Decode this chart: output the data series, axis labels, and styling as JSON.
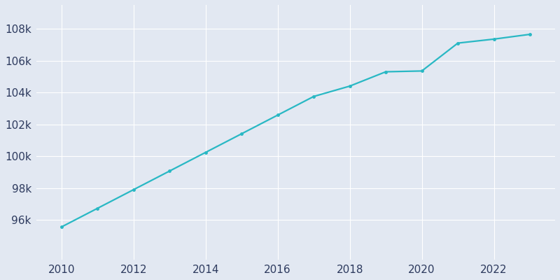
{
  "years": [
    2010,
    2011,
    2012,
    2013,
    2014,
    2015,
    2016,
    2017,
    2018,
    2019,
    2020,
    2021,
    2022,
    2023
  ],
  "population": [
    95560,
    96730,
    97900,
    99070,
    100240,
    101410,
    102580,
    103750,
    104400,
    105300,
    105350,
    107100,
    107350,
    107650
  ],
  "line_color": "#29b8c4",
  "marker": "o",
  "marker_size": 2.5,
  "linewidth": 1.6,
  "bg_color": "#e2e8f2",
  "grid_color": "#ffffff",
  "tick_color": "#2d3a5e",
  "ylim": [
    93500,
    109500
  ],
  "ytick_values": [
    96000,
    98000,
    100000,
    102000,
    104000,
    106000,
    108000
  ],
  "xtick_values": [
    2010,
    2012,
    2014,
    2016,
    2018,
    2020,
    2022
  ],
  "tick_fontsize": 11,
  "xlim_left": 2009.3,
  "xlim_right": 2023.7
}
